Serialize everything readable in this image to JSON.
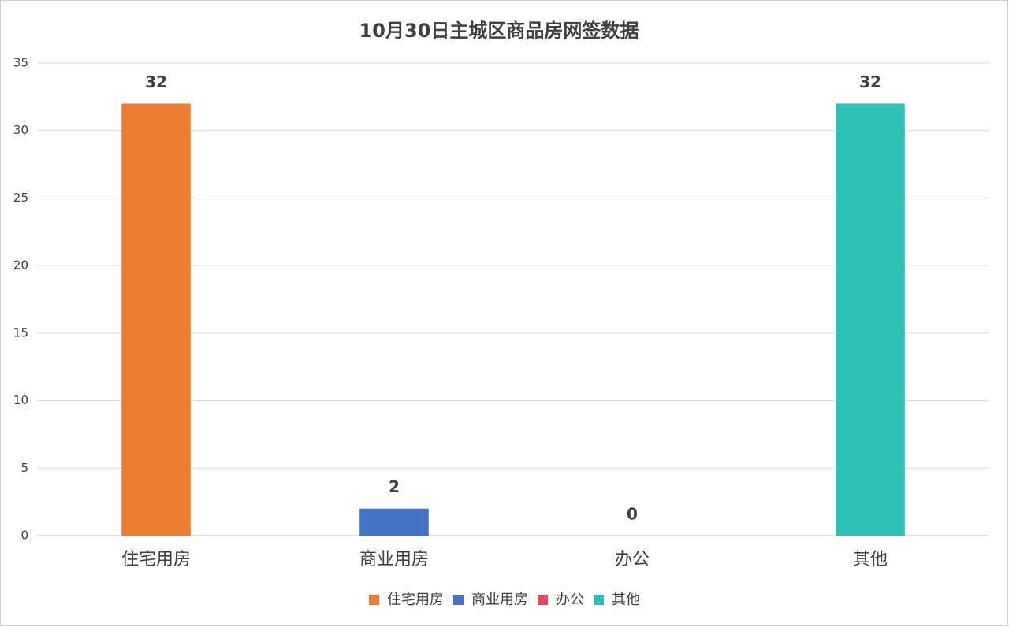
{
  "chart_data": {
    "type": "bar",
    "title": "10月30日主城区商品房网签数据",
    "categories": [
      "住宅用房",
      "商业用房",
      "办公",
      "其他"
    ],
    "values": [
      32,
      2,
      0,
      32
    ],
    "colors": [
      "#ed7d31",
      "#4472c4",
      "#e8475f",
      "#2ec0b4"
    ],
    "ylim": [
      0,
      35
    ],
    "yticks": [
      0,
      5,
      10,
      15,
      20,
      25,
      30,
      35
    ],
    "grid": true,
    "legend": "bottom"
  }
}
